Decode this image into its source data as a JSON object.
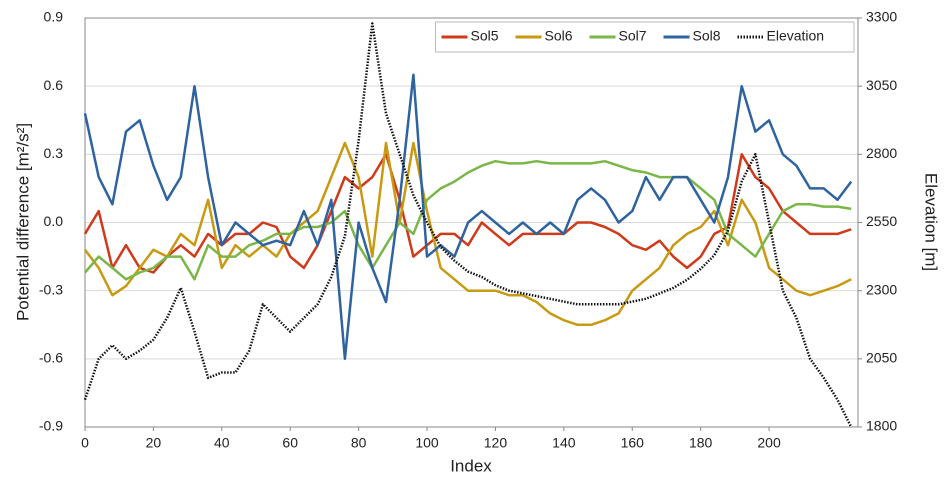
{
  "chart_data": {
    "type": "line",
    "xlabel": "Index",
    "ylabel": "Potential difference [m²/s²]",
    "y2label": "Elevation [m]",
    "x": [
      0,
      4,
      8,
      12,
      16,
      20,
      24,
      28,
      32,
      36,
      40,
      44,
      48,
      52,
      56,
      60,
      64,
      68,
      72,
      76,
      80,
      84,
      88,
      92,
      96,
      100,
      104,
      108,
      112,
      116,
      120,
      124,
      128,
      132,
      136,
      140,
      144,
      148,
      152,
      156,
      160,
      164,
      168,
      172,
      176,
      180,
      184,
      188,
      192,
      196,
      200,
      204,
      208,
      212,
      216,
      220,
      224
    ],
    "series": [
      {
        "name": "Sol5",
        "color": "#d03a1a",
        "values": [
          -0.05,
          0.05,
          -0.2,
          -0.1,
          -0.2,
          -0.22,
          -0.15,
          -0.1,
          -0.15,
          -0.05,
          -0.1,
          -0.05,
          -0.05,
          0.0,
          -0.02,
          -0.15,
          -0.2,
          -0.1,
          0.05,
          0.2,
          0.15,
          0.2,
          0.3,
          0.1,
          -0.15,
          -0.1,
          -0.05,
          -0.05,
          -0.1,
          0.0,
          -0.05,
          -0.1,
          -0.05,
          -0.05,
          -0.05,
          -0.05,
          0.0,
          0.0,
          -0.02,
          -0.05,
          -0.1,
          -0.12,
          -0.08,
          -0.15,
          -0.2,
          -0.15,
          -0.05,
          -0.02,
          0.3,
          0.2,
          0.15,
          0.05,
          0.0,
          -0.05,
          -0.05,
          -0.05,
          -0.03
        ]
      },
      {
        "name": "Sol6",
        "color": "#c89a12",
        "values": [
          -0.12,
          -0.2,
          -0.32,
          -0.28,
          -0.2,
          -0.12,
          -0.15,
          -0.05,
          -0.1,
          0.1,
          -0.2,
          -0.1,
          -0.15,
          -0.1,
          -0.15,
          -0.05,
          0.0,
          0.05,
          0.2,
          0.35,
          0.2,
          -0.15,
          0.35,
          0.0,
          0.35,
          0.05,
          -0.2,
          -0.25,
          -0.3,
          -0.3,
          -0.3,
          -0.32,
          -0.32,
          -0.35,
          -0.4,
          -0.43,
          -0.45,
          -0.45,
          -0.43,
          -0.4,
          -0.3,
          -0.25,
          -0.2,
          -0.1,
          -0.05,
          -0.02,
          0.05,
          -0.1,
          0.1,
          0.0,
          -0.2,
          -0.25,
          -0.3,
          -0.32,
          -0.3,
          -0.28,
          -0.25
        ]
      },
      {
        "name": "Sol7",
        "color": "#7ab648",
        "values": [
          -0.22,
          -0.15,
          -0.2,
          -0.25,
          -0.22,
          -0.2,
          -0.15,
          -0.15,
          -0.25,
          -0.1,
          -0.15,
          -0.15,
          -0.1,
          -0.08,
          -0.05,
          -0.05,
          -0.02,
          -0.02,
          0.0,
          0.05,
          -0.1,
          -0.2,
          -0.1,
          0.0,
          -0.05,
          0.1,
          0.15,
          0.18,
          0.22,
          0.25,
          0.27,
          0.26,
          0.26,
          0.27,
          0.26,
          0.26,
          0.26,
          0.26,
          0.27,
          0.25,
          0.23,
          0.22,
          0.2,
          0.2,
          0.2,
          0.15,
          0.1,
          -0.05,
          -0.1,
          -0.15,
          -0.05,
          0.05,
          0.08,
          0.08,
          0.07,
          0.07,
          0.06
        ]
      },
      {
        "name": "Sol8",
        "color": "#2e63a0",
        "values": [
          0.48,
          0.2,
          0.08,
          0.4,
          0.45,
          0.25,
          0.1,
          0.2,
          0.6,
          0.2,
          -0.1,
          0.0,
          -0.05,
          -0.1,
          -0.08,
          -0.1,
          0.05,
          -0.1,
          0.1,
          -0.6,
          0.0,
          -0.2,
          -0.35,
          0.1,
          0.65,
          -0.15,
          -0.1,
          -0.15,
          0.0,
          0.05,
          0.0,
          -0.05,
          0.0,
          -0.05,
          0.0,
          -0.05,
          0.1,
          0.15,
          0.1,
          0.0,
          0.05,
          0.2,
          0.1,
          0.2,
          0.2,
          0.1,
          0.0,
          0.2,
          0.6,
          0.4,
          0.45,
          0.3,
          0.25,
          0.15,
          0.15,
          0.1,
          0.18
        ]
      },
      {
        "name": "Elevation",
        "color": "#111111",
        "dash": "dotted",
        "axis": "y2",
        "values": [
          1900,
          2050,
          2100,
          2050,
          2080,
          2120,
          2200,
          2310,
          2150,
          1980,
          2000,
          2000,
          2080,
          2250,
          2200,
          2150,
          2200,
          2250,
          2350,
          2500,
          2850,
          3280,
          2950,
          2800,
          2650,
          2550,
          2460,
          2410,
          2370,
          2350,
          2320,
          2300,
          2290,
          2280,
          2270,
          2260,
          2250,
          2250,
          2250,
          2250,
          2260,
          2270,
          2290,
          2310,
          2340,
          2380,
          2430,
          2520,
          2700,
          2800,
          2550,
          2300,
          2200,
          2050,
          1980,
          1900,
          1800
        ]
      }
    ],
    "xlim": [
      0,
      226
    ],
    "xticks": [
      0,
      20,
      40,
      60,
      80,
      100,
      120,
      140,
      160,
      180,
      200
    ],
    "ylim": [
      -0.9,
      0.9
    ],
    "yticks": [
      -0.9,
      -0.6,
      -0.3,
      {
        "value": 0,
        "label": "0.0"
      },
      0.3,
      0.6,
      0.9
    ],
    "y2lim": [
      1800,
      3300
    ],
    "y2ticks": [
      1800,
      2050,
      2300,
      2550,
      2800,
      3050,
      3300
    ],
    "grid": true,
    "legend": "upper right"
  }
}
